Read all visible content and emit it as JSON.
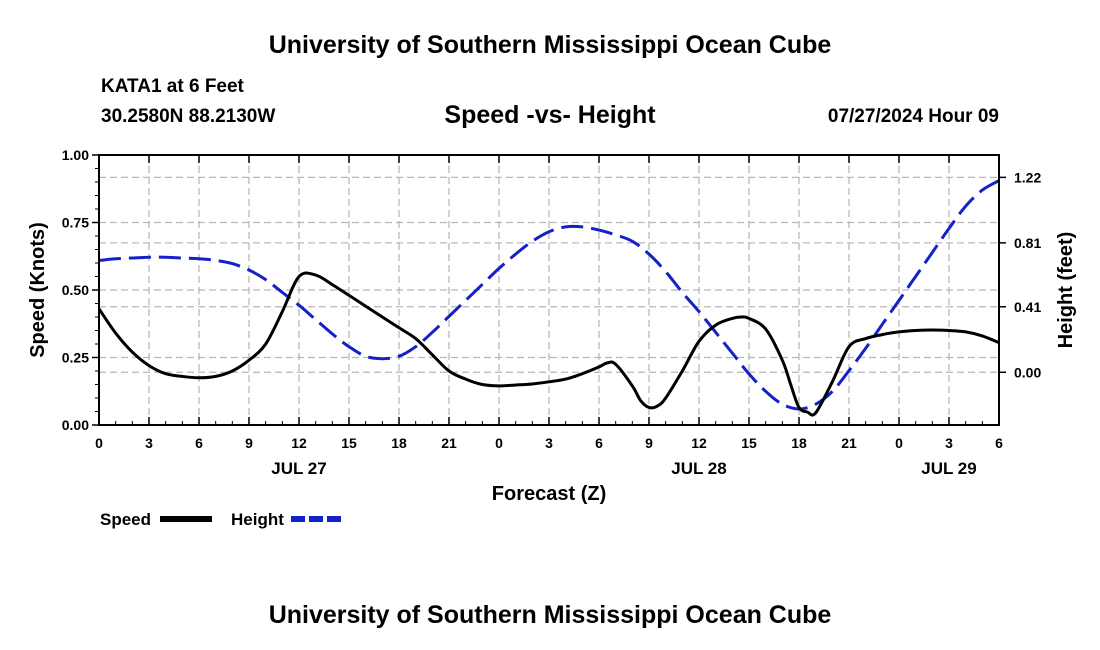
{
  "header": {
    "title": "University of Southern Mississippi Ocean Cube",
    "station": "KATA1 at 6 Feet",
    "coords": "30.2580N  88.2130W",
    "datetime": "07/27/2024 Hour 09"
  },
  "footer": {
    "title": "University of Southern Mississippi Ocean Cube"
  },
  "chart_data": {
    "type": "line",
    "title": "Speed -vs- Height",
    "xlabel": "Forecast (Z)",
    "ylabel_left": "Speed (Knots)",
    "ylabel_right": "Height (feet)",
    "x_range_hours": [
      0,
      54
    ],
    "x_ticks": [
      {
        "h": 0,
        "label": "0"
      },
      {
        "h": 3,
        "label": "3"
      },
      {
        "h": 6,
        "label": "6"
      },
      {
        "h": 9,
        "label": "9"
      },
      {
        "h": 12,
        "label": "12"
      },
      {
        "h": 15,
        "label": "15"
      },
      {
        "h": 18,
        "label": "18"
      },
      {
        "h": 21,
        "label": "21"
      },
      {
        "h": 24,
        "label": "0"
      },
      {
        "h": 27,
        "label": "3"
      },
      {
        "h": 30,
        "label": "6"
      },
      {
        "h": 33,
        "label": "9"
      },
      {
        "h": 36,
        "label": "12"
      },
      {
        "h": 39,
        "label": "15"
      },
      {
        "h": 42,
        "label": "18"
      },
      {
        "h": 45,
        "label": "21"
      },
      {
        "h": 48,
        "label": "0"
      },
      {
        "h": 51,
        "label": "3"
      },
      {
        "h": 54,
        "label": "6"
      }
    ],
    "day_labels": [
      {
        "h": 12,
        "label": "JUL 27"
      },
      {
        "h": 36,
        "label": "JUL 28"
      },
      {
        "h": 51,
        "label": "JUL 29"
      }
    ],
    "left_axis": {
      "range": [
        0,
        1
      ],
      "ticks": [
        {
          "v": 0,
          "label": "0.00"
        },
        {
          "v": 0.25,
          "label": "0.25"
        },
        {
          "v": 0.5,
          "label": "0.50"
        },
        {
          "v": 0.75,
          "label": "0.75"
        },
        {
          "v": 1,
          "label": "1.00"
        }
      ]
    },
    "right_axis": {
      "range": [
        -0.33,
        1.36
      ],
      "ticks": [
        {
          "v": 0,
          "label": "0.00"
        },
        {
          "v": 0.41,
          "label": "0.41"
        },
        {
          "v": 0.81,
          "label": "0.81"
        },
        {
          "v": 1.22,
          "label": "1.22"
        }
      ]
    },
    "series": [
      {
        "name": "Speed",
        "color": "#000000",
        "dashed": false,
        "axis": "left",
        "x": [
          0,
          1,
          2,
          3,
          4,
          5,
          6,
          7,
          8,
          9,
          10,
          11,
          12,
          13,
          14,
          15,
          16,
          17,
          18,
          19,
          20,
          21,
          22,
          23,
          24,
          25,
          26,
          27,
          28,
          29,
          30,
          30.5,
          31,
          32,
          32.5,
          33,
          33.5,
          34,
          35,
          36,
          37,
          38,
          38.5,
          39,
          40,
          41,
          41.5,
          42,
          42.5,
          43,
          44,
          45,
          46,
          47,
          48,
          49,
          50,
          51,
          52,
          53,
          54
        ],
        "values": [
          0.43,
          0.34,
          0.27,
          0.22,
          0.19,
          0.18,
          0.175,
          0.18,
          0.2,
          0.24,
          0.3,
          0.42,
          0.55,
          0.555,
          0.52,
          0.48,
          0.44,
          0.4,
          0.36,
          0.32,
          0.26,
          0.2,
          0.17,
          0.15,
          0.145,
          0.148,
          0.152,
          0.16,
          0.17,
          0.19,
          0.215,
          0.23,
          0.225,
          0.145,
          0.09,
          0.065,
          0.07,
          0.1,
          0.2,
          0.31,
          0.37,
          0.395,
          0.4,
          0.395,
          0.355,
          0.24,
          0.15,
          0.065,
          0.048,
          0.045,
          0.16,
          0.29,
          0.32,
          0.335,
          0.345,
          0.35,
          0.352,
          0.35,
          0.345,
          0.33,
          0.305
        ]
      },
      {
        "name": "Height",
        "color": "#1420c8",
        "dashed": true,
        "axis": "right",
        "x": [
          0,
          1,
          2,
          3,
          4,
          5,
          6,
          7,
          8,
          9,
          10,
          11,
          12,
          13,
          14,
          15,
          16,
          17,
          18,
          19,
          20,
          21,
          22,
          23,
          24,
          25,
          26,
          27,
          28,
          29,
          30,
          31,
          32,
          33,
          34,
          35,
          36,
          37,
          38,
          39,
          40,
          41,
          42,
          43,
          44,
          45,
          46,
          47,
          48,
          49,
          50,
          51,
          52,
          53,
          54
        ],
        "values": [
          0.7,
          0.71,
          0.715,
          0.72,
          0.72,
          0.715,
          0.71,
          0.7,
          0.68,
          0.64,
          0.58,
          0.5,
          0.42,
          0.33,
          0.24,
          0.16,
          0.1,
          0.085,
          0.1,
          0.16,
          0.25,
          0.35,
          0.45,
          0.55,
          0.65,
          0.74,
          0.82,
          0.88,
          0.91,
          0.91,
          0.89,
          0.86,
          0.82,
          0.74,
          0.63,
          0.5,
          0.38,
          0.25,
          0.12,
          -0.01,
          -0.12,
          -0.2,
          -0.23,
          -0.2,
          -0.12,
          0.01,
          0.15,
          0.3,
          0.45,
          0.6,
          0.75,
          0.9,
          1.04,
          1.14,
          1.2
        ]
      }
    ],
    "legend": [
      {
        "label": "Speed",
        "color": "#000000"
      },
      {
        "label": "Height",
        "color": "#1420c8"
      }
    ]
  }
}
